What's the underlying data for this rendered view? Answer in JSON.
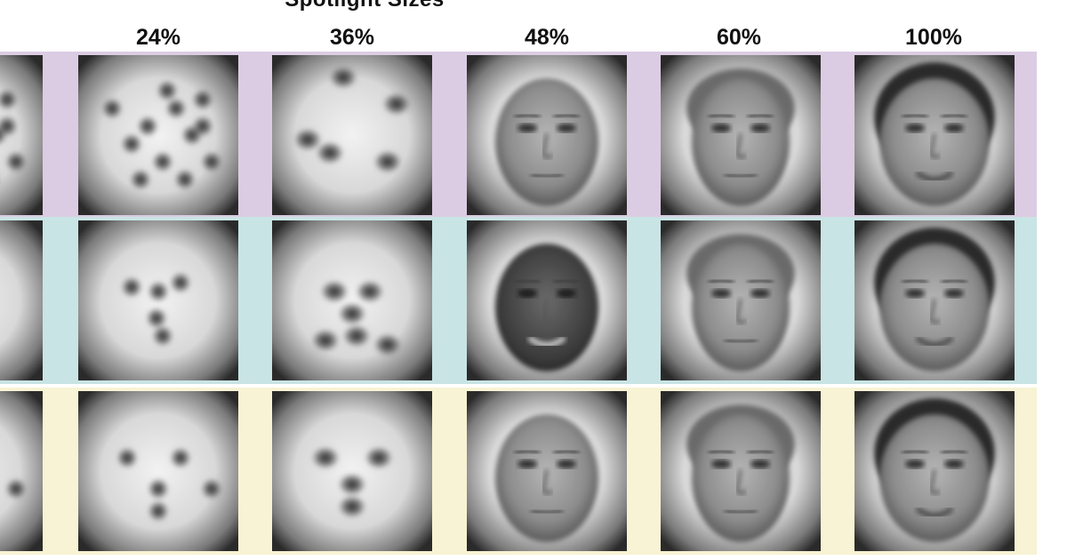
{
  "figure": {
    "title": "Spotlight Sizes",
    "columns": [
      "24%",
      "36%",
      "48%",
      "60%",
      "100%"
    ],
    "rows": [
      {
        "band_color": "#dccce3"
      },
      {
        "band_color": "#c9e4e4"
      },
      {
        "band_color": "#f8f3d4"
      }
    ]
  }
}
